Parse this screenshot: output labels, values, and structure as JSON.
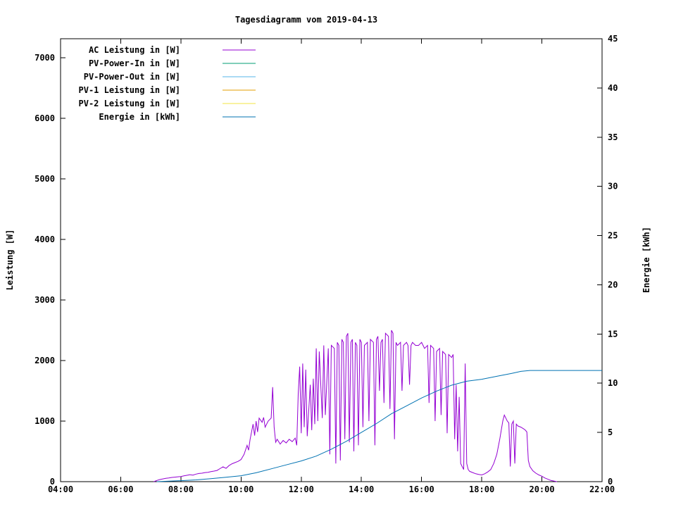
{
  "chart_data": {
    "type": "line",
    "title": "Tagesdiagramm vom 2019-04-13",
    "grid": false,
    "legend_position": "top-left-inside",
    "x_axis": {
      "min": 4,
      "max": 22,
      "ticks": [
        {
          "value": 4,
          "label": "04:00"
        },
        {
          "value": 6,
          "label": "06:00"
        },
        {
          "value": 8,
          "label": "08:00"
        },
        {
          "value": 10,
          "label": "10:00"
        },
        {
          "value": 12,
          "label": "12:00"
        },
        {
          "value": 14,
          "label": "14:00"
        },
        {
          "value": 16,
          "label": "16:00"
        },
        {
          "value": 18,
          "label": "18:00"
        },
        {
          "value": 20,
          "label": "20:00"
        },
        {
          "value": 22,
          "label": "22:00"
        }
      ]
    },
    "y_left": {
      "label": "Leistung [W]",
      "min": 0,
      "max": 7314,
      "ticks": [
        0,
        1000,
        2000,
        3000,
        4000,
        5000,
        6000,
        7000
      ]
    },
    "y_right": {
      "label": "Energie [kWh]",
      "min": 0,
      "max": 45,
      "ticks": [
        0,
        5,
        10,
        15,
        20,
        25,
        30,
        35,
        40,
        45
      ]
    },
    "series": [
      {
        "name": "AC Leistung in [W]",
        "color": "#9400d3",
        "axis": "left",
        "points": [
          [
            7.1,
            0
          ],
          [
            7.2,
            20
          ],
          [
            7.3,
            35
          ],
          [
            7.4,
            45
          ],
          [
            7.5,
            55
          ],
          [
            7.6,
            60
          ],
          [
            7.7,
            70
          ],
          [
            7.8,
            75
          ],
          [
            7.9,
            80
          ],
          [
            8.0,
            85
          ],
          [
            8.1,
            95
          ],
          [
            8.2,
            105
          ],
          [
            8.3,
            115
          ],
          [
            8.4,
            108
          ],
          [
            8.5,
            125
          ],
          [
            8.6,
            135
          ],
          [
            8.7,
            140
          ],
          [
            8.8,
            150
          ],
          [
            8.9,
            155
          ],
          [
            9.0,
            165
          ],
          [
            9.1,
            175
          ],
          [
            9.2,
            185
          ],
          [
            9.3,
            215
          ],
          [
            9.4,
            245
          ],
          [
            9.5,
            220
          ],
          [
            9.6,
            265
          ],
          [
            9.7,
            295
          ],
          [
            9.8,
            315
          ],
          [
            9.9,
            335
          ],
          [
            10.0,
            365
          ],
          [
            10.1,
            450
          ],
          [
            10.2,
            600
          ],
          [
            10.25,
            520
          ],
          [
            10.3,
            700
          ],
          [
            10.4,
            950
          ],
          [
            10.45,
            760
          ],
          [
            10.5,
            1000
          ],
          [
            10.55,
            820
          ],
          [
            10.6,
            1050
          ],
          [
            10.7,
            980
          ],
          [
            10.75,
            1060
          ],
          [
            10.8,
            900
          ],
          [
            10.9,
            1000
          ],
          [
            11.0,
            1050
          ],
          [
            11.05,
            1560
          ],
          [
            11.1,
            900
          ],
          [
            11.15,
            650
          ],
          [
            11.2,
            700
          ],
          [
            11.3,
            620
          ],
          [
            11.4,
            680
          ],
          [
            11.5,
            640
          ],
          [
            11.6,
            700
          ],
          [
            11.7,
            660
          ],
          [
            11.8,
            720
          ],
          [
            11.85,
            600
          ],
          [
            11.9,
            1450
          ],
          [
            11.95,
            1900
          ],
          [
            12.0,
            800
          ],
          [
            12.05,
            1950
          ],
          [
            12.1,
            900
          ],
          [
            12.15,
            1850
          ],
          [
            12.2,
            750
          ],
          [
            12.3,
            1600
          ],
          [
            12.35,
            850
          ],
          [
            12.4,
            1700
          ],
          [
            12.45,
            950
          ],
          [
            12.5,
            2200
          ],
          [
            12.55,
            1000
          ],
          [
            12.6,
            2150
          ],
          [
            12.7,
            1050
          ],
          [
            12.75,
            2250
          ],
          [
            12.8,
            1100
          ],
          [
            12.9,
            2200
          ],
          [
            12.95,
            450
          ],
          [
            13.0,
            2250
          ],
          [
            13.1,
            2200
          ],
          [
            13.15,
            300
          ],
          [
            13.2,
            2300
          ],
          [
            13.25,
            2250
          ],
          [
            13.3,
            350
          ],
          [
            13.35,
            2350
          ],
          [
            13.4,
            2300
          ],
          [
            13.45,
            700
          ],
          [
            13.5,
            2400
          ],
          [
            13.55,
            2450
          ],
          [
            13.6,
            650
          ],
          [
            13.65,
            2300
          ],
          [
            13.7,
            2350
          ],
          [
            13.75,
            500
          ],
          [
            13.8,
            2300
          ],
          [
            13.85,
            2250
          ],
          [
            13.9,
            600
          ],
          [
            13.95,
            2350
          ],
          [
            14.0,
            2300
          ],
          [
            14.05,
            900
          ],
          [
            14.1,
            2250
          ],
          [
            14.2,
            2300
          ],
          [
            14.25,
            1000
          ],
          [
            14.3,
            2350
          ],
          [
            14.4,
            2300
          ],
          [
            14.45,
            600
          ],
          [
            14.5,
            2350
          ],
          [
            14.55,
            2400
          ],
          [
            14.6,
            1500
          ],
          [
            14.65,
            2300
          ],
          [
            14.7,
            2350
          ],
          [
            14.75,
            1300
          ],
          [
            14.8,
            2450
          ],
          [
            14.9,
            2400
          ],
          [
            14.95,
            1200
          ],
          [
            15.0,
            2500
          ],
          [
            15.05,
            2450
          ],
          [
            15.1,
            700
          ],
          [
            15.15,
            2300
          ],
          [
            15.2,
            2250
          ],
          [
            15.3,
            2300
          ],
          [
            15.35,
            1500
          ],
          [
            15.4,
            2250
          ],
          [
            15.5,
            2300
          ],
          [
            15.55,
            2250
          ],
          [
            15.6,
            1600
          ],
          [
            15.65,
            2250
          ],
          [
            15.7,
            2300
          ],
          [
            15.8,
            2250
          ],
          [
            15.9,
            2250
          ],
          [
            16.0,
            2300
          ],
          [
            16.05,
            2250
          ],
          [
            16.1,
            2200
          ],
          [
            16.2,
            2250
          ],
          [
            16.25,
            1300
          ],
          [
            16.3,
            2250
          ],
          [
            16.4,
            2200
          ],
          [
            16.45,
            1000
          ],
          [
            16.5,
            2150
          ],
          [
            16.6,
            2200
          ],
          [
            16.65,
            1100
          ],
          [
            16.7,
            2150
          ],
          [
            16.8,
            2100
          ],
          [
            16.85,
            800
          ],
          [
            16.9,
            2100
          ],
          [
            17.0,
            2050
          ],
          [
            17.05,
            2100
          ],
          [
            17.1,
            700
          ],
          [
            17.15,
            1600
          ],
          [
            17.2,
            500
          ],
          [
            17.25,
            1400
          ],
          [
            17.3,
            300
          ],
          [
            17.35,
            250
          ],
          [
            17.4,
            200
          ],
          [
            17.45,
            1950
          ],
          [
            17.5,
            300
          ],
          [
            17.55,
            200
          ],
          [
            17.6,
            170
          ],
          [
            17.7,
            150
          ],
          [
            17.8,
            130
          ],
          [
            17.9,
            120
          ],
          [
            18.0,
            110
          ],
          [
            18.1,
            130
          ],
          [
            18.2,
            160
          ],
          [
            18.3,
            200
          ],
          [
            18.4,
            300
          ],
          [
            18.5,
            450
          ],
          [
            18.6,
            700
          ],
          [
            18.7,
            1000
          ],
          [
            18.75,
            1100
          ],
          [
            18.8,
            1050
          ],
          [
            18.85,
            1000
          ],
          [
            18.9,
            970
          ],
          [
            18.95,
            250
          ],
          [
            19.0,
            950
          ],
          [
            19.05,
            1000
          ],
          [
            19.1,
            300
          ],
          [
            19.15,
            950
          ],
          [
            19.2,
            920
          ],
          [
            19.3,
            900
          ],
          [
            19.4,
            870
          ],
          [
            19.45,
            850
          ],
          [
            19.5,
            820
          ],
          [
            19.55,
            350
          ],
          [
            19.6,
            250
          ],
          [
            19.7,
            180
          ],
          [
            19.8,
            140
          ],
          [
            19.9,
            110
          ],
          [
            20.0,
            90
          ],
          [
            20.1,
            60
          ],
          [
            20.2,
            40
          ],
          [
            20.3,
            20
          ],
          [
            20.4,
            10
          ],
          [
            20.5,
            0
          ]
        ]
      },
      {
        "name": "PV-Power-In in [W]",
        "color": "#009e73",
        "axis": "left",
        "points": []
      },
      {
        "name": "PV-Power-Out in [W]",
        "color": "#56b4e9",
        "axis": "left",
        "points": []
      },
      {
        "name": "PV-1 Leistung in [W]",
        "color": "#e69f00",
        "axis": "left",
        "points": []
      },
      {
        "name": "PV-2 Leistung in [W]",
        "color": "#f0e442",
        "axis": "left",
        "points": []
      },
      {
        "name": "Energie in [kWh]",
        "color": "#0072b2",
        "axis": "right",
        "points": [
          [
            7.2,
            0
          ],
          [
            8.0,
            0.1
          ],
          [
            8.5,
            0.18
          ],
          [
            9.0,
            0.3
          ],
          [
            9.5,
            0.45
          ],
          [
            10.0,
            0.6
          ],
          [
            10.5,
            0.9
          ],
          [
            11.0,
            1.3
          ],
          [
            11.5,
            1.7
          ],
          [
            12.0,
            2.1
          ],
          [
            12.5,
            2.6
          ],
          [
            13.0,
            3.3
          ],
          [
            13.5,
            4.1
          ],
          [
            14.0,
            5.0
          ],
          [
            14.5,
            5.9
          ],
          [
            15.0,
            6.9
          ],
          [
            15.5,
            7.7
          ],
          [
            16.0,
            8.5
          ],
          [
            16.5,
            9.2
          ],
          [
            17.0,
            9.8
          ],
          [
            17.5,
            10.2
          ],
          [
            18.0,
            10.4
          ],
          [
            18.5,
            10.7
          ],
          [
            19.0,
            11.0
          ],
          [
            19.3,
            11.2
          ],
          [
            19.6,
            11.3
          ],
          [
            20.0,
            11.3
          ],
          [
            21.0,
            11.3
          ],
          [
            22.0,
            11.3
          ]
        ]
      }
    ]
  }
}
